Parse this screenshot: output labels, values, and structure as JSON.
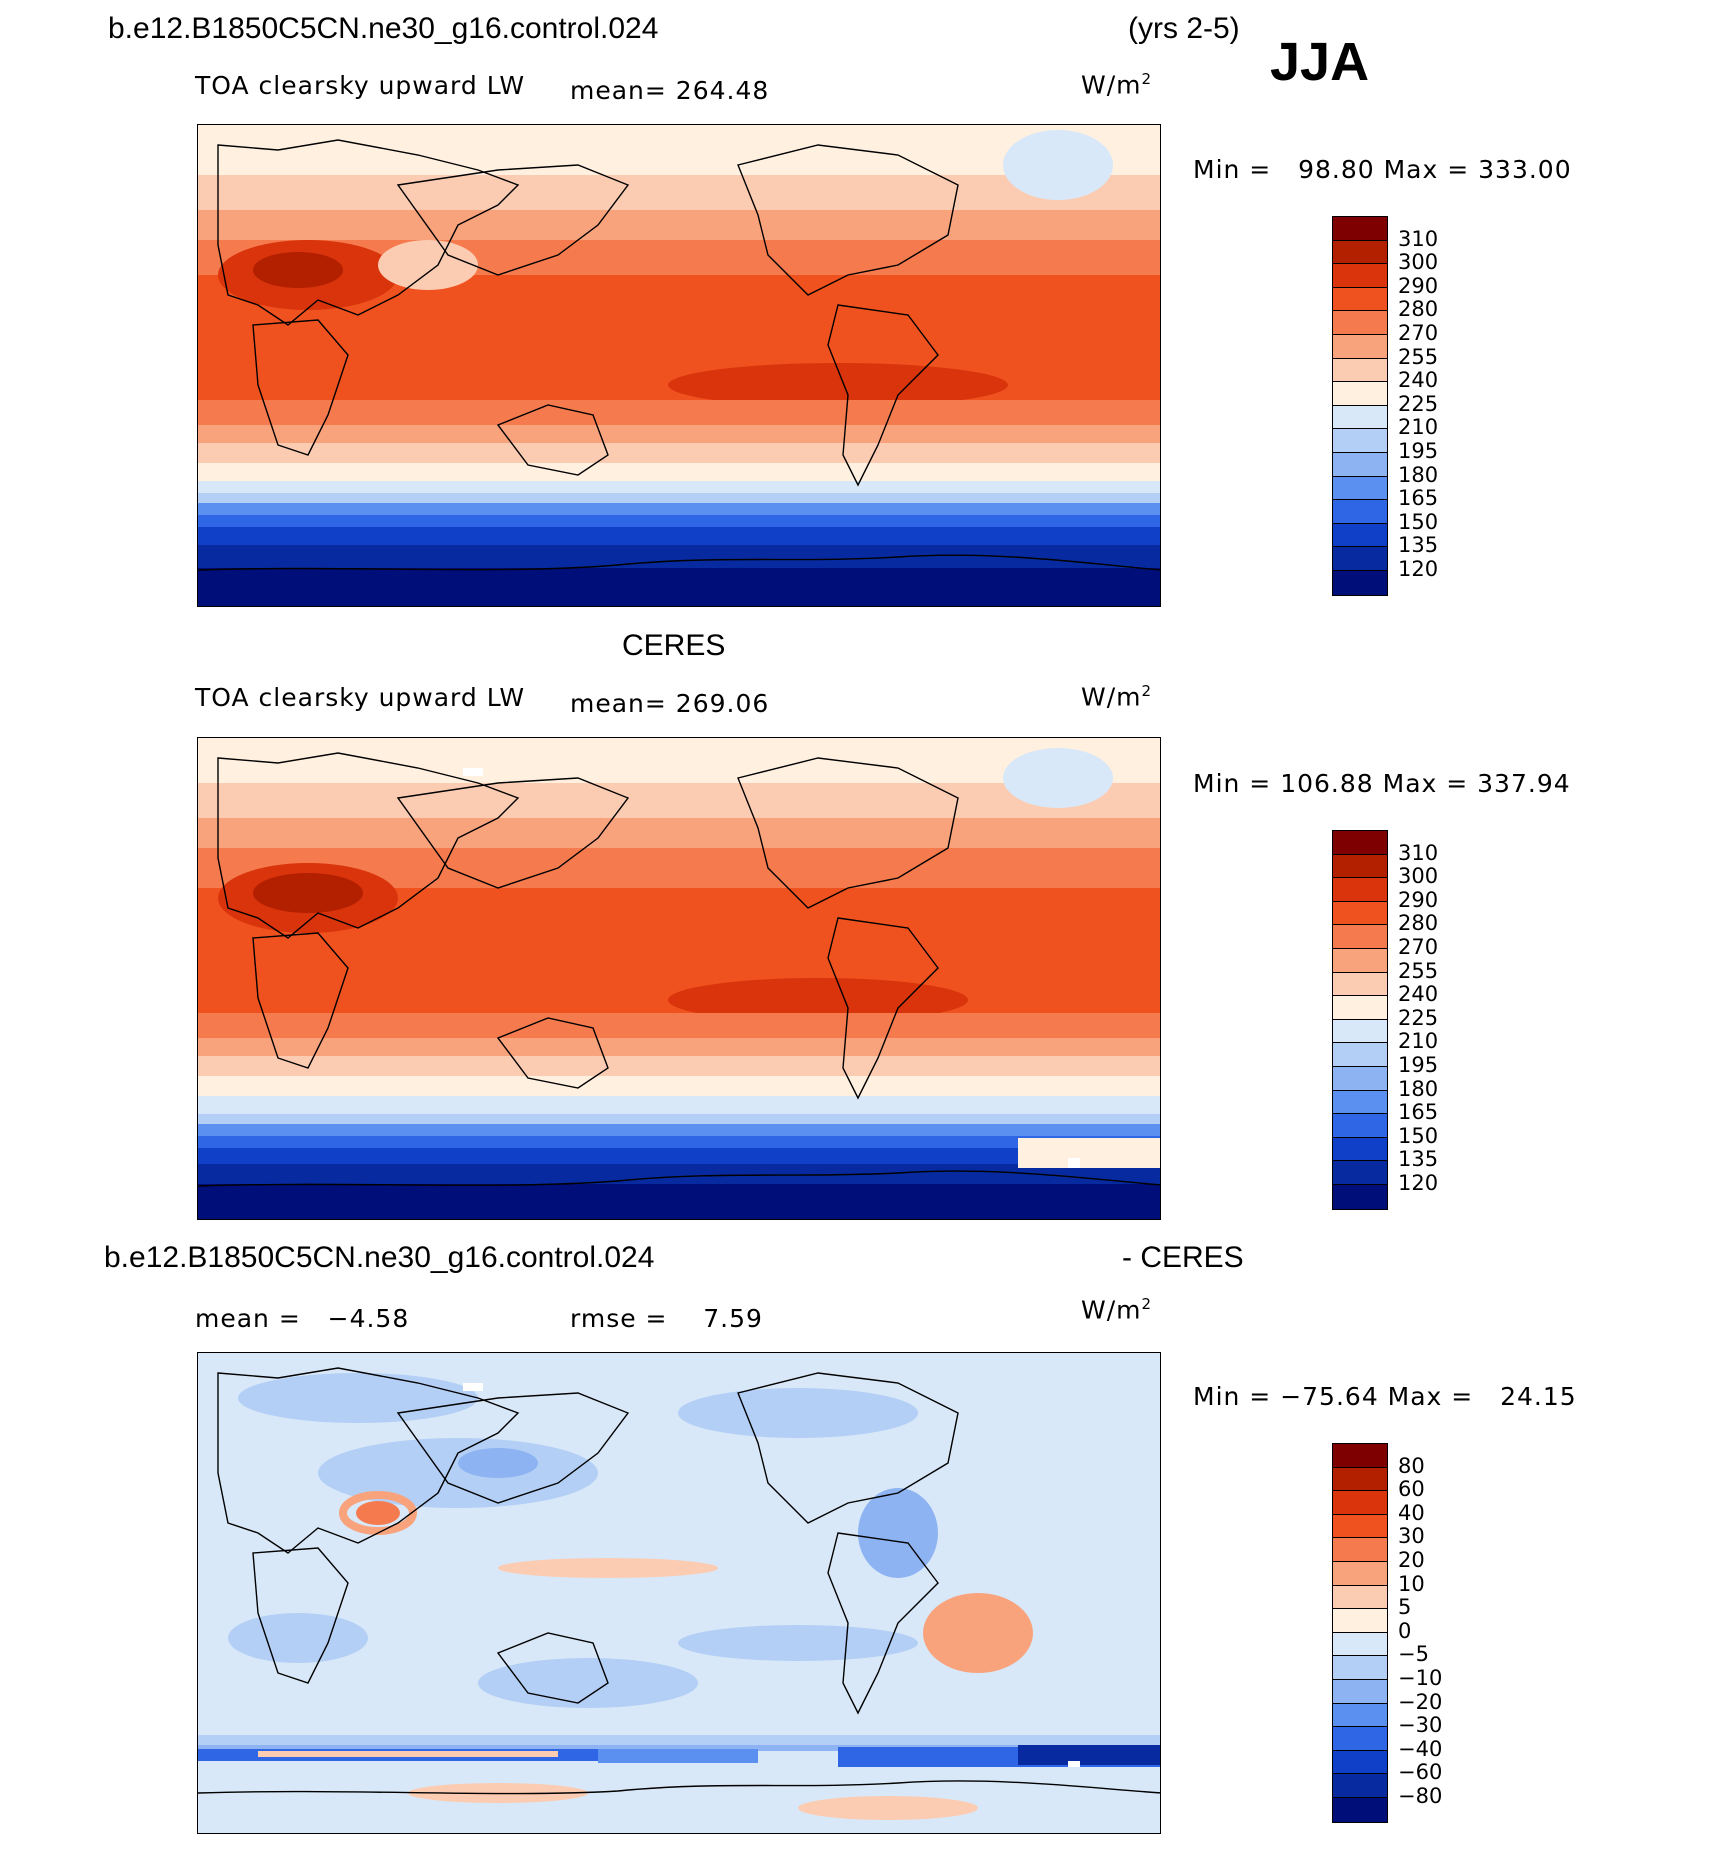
{
  "header": {
    "case_name": "b.e12.B1850C5CN.ne30_g16.control.024",
    "years": "(yrs 2-5)",
    "season": "JJA"
  },
  "panels": [
    {
      "title": "",
      "subtitle": "TOA clearsky upward LW",
      "mean_text": "mean= 264.48",
      "units": "W/m",
      "units_sup": "2",
      "minmax": "Min =   98.80 Max = 333.00"
    },
    {
      "title": "CERES",
      "subtitle": "TOA clearsky upward LW",
      "mean_text": "mean= 269.06",
      "units": "W/m",
      "units_sup": "2",
      "minmax": "Min = 106.88 Max = 337.94"
    },
    {
      "title_left": "b.e12.B1850C5CN.ne30_g16.control.024",
      "title_right": "- CERES",
      "mean_text": "mean =   −4.58",
      "rmse_text": "rmse =    7.59",
      "units": "W/m",
      "units_sup": "2",
      "minmax": "Min = −75.64 Max =   24.15"
    }
  ],
  "colorbars": {
    "field": {
      "ticks": [
        "310",
        "300",
        "290",
        "280",
        "270",
        "255",
        "240",
        "225",
        "210",
        "195",
        "180",
        "165",
        "150",
        "135",
        "120"
      ],
      "colors": [
        "#7f0000",
        "#b22000",
        "#d9340b",
        "#f0521f",
        "#f57b4e",
        "#f9a37d",
        "#fcccb2",
        "#fff0e0",
        "#d8e8f8",
        "#b3cff5",
        "#8db3f2",
        "#5b8ff0",
        "#2f66e6",
        "#1040c8",
        "#072aa0",
        "#000e7a"
      ]
    },
    "diff": {
      "ticks": [
        "80",
        "60",
        "40",
        "30",
        "20",
        "10",
        "5",
        "0",
        "−5",
        "−10",
        "−20",
        "−30",
        "−40",
        "−60",
        "−80"
      ],
      "colors": [
        "#7f0000",
        "#b22000",
        "#d9340b",
        "#f0521f",
        "#f57b4e",
        "#f9a37d",
        "#fcccb2",
        "#fff0e0",
        "#d8e8f8",
        "#b3cff5",
        "#8db3f2",
        "#5b8ff0",
        "#2f66e6",
        "#1040c8",
        "#072aa0",
        "#000e7a"
      ]
    }
  }
}
